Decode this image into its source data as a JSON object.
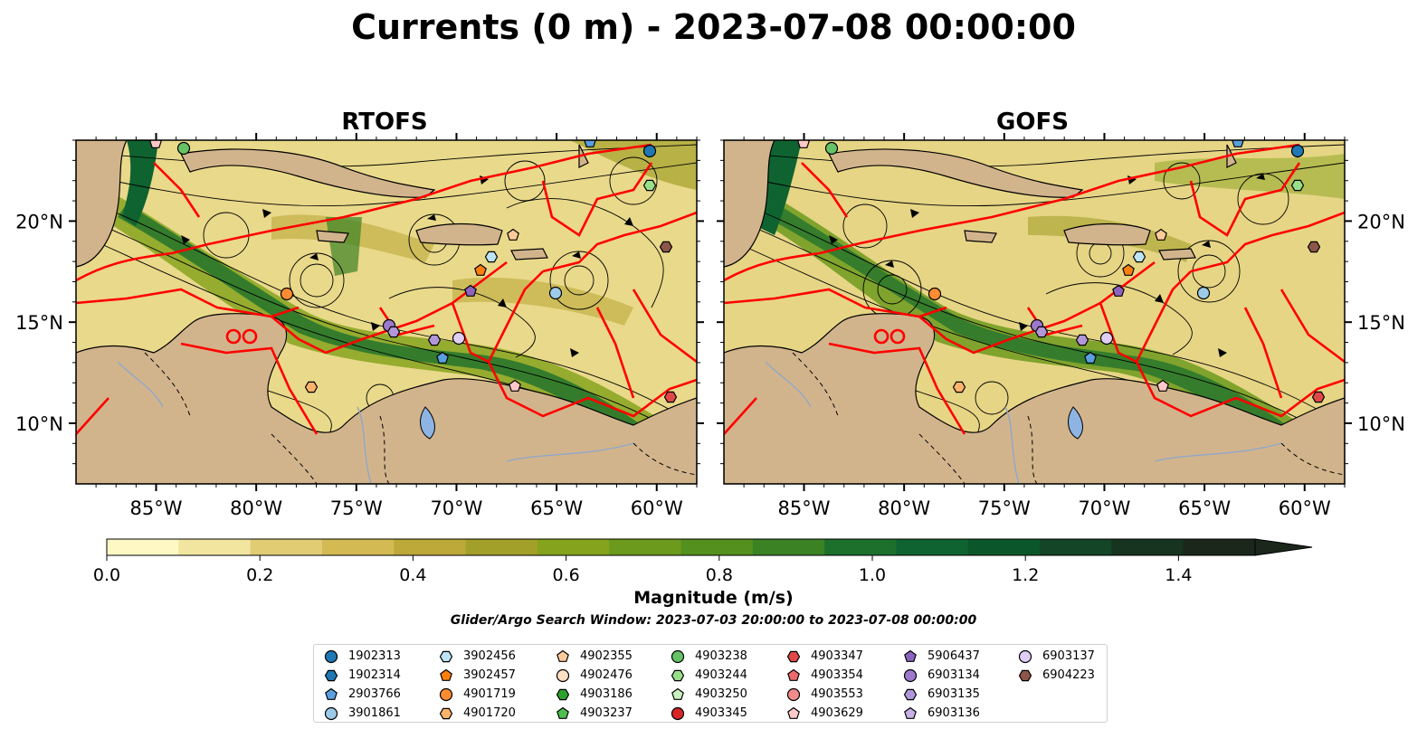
{
  "title": "Currents (0 m) - 2023-07-08 00:00:00",
  "panels": [
    {
      "title": "RTOFS",
      "lon_ticks": [
        "85°W",
        "80°W",
        "75°W",
        "70°W",
        "65°W",
        "60°W"
      ],
      "lat_ticks": [
        "20°N",
        "15°N",
        "10°N"
      ]
    },
    {
      "title": "GOFS",
      "lon_ticks": [
        "85°W",
        "80°W",
        "75°W",
        "70°W",
        "65°W",
        "60°W"
      ],
      "lat_ticks": [
        "20°N",
        "15°N",
        "10°N"
      ]
    }
  ],
  "map_extent": {
    "lon": [
      -89,
      -58
    ],
    "lat": [
      7,
      24
    ]
  },
  "colorbar": {
    "label": "Magnitude (m/s)",
    "ticks": [
      "0.0",
      "0.2",
      "0.4",
      "0.6",
      "0.8",
      "1.0",
      "1.2",
      "1.4"
    ],
    "range": [
      0,
      1.5
    ],
    "extend": "max",
    "colors": [
      "#fdf8c4",
      "#f1e5a0",
      "#e1cc74",
      "#d4ba52",
      "#bca93a",
      "#a3a02a",
      "#86a31e",
      "#6c9a1c",
      "#54901e",
      "#3a8224",
      "#1c702c",
      "#0f6330",
      "#0b562b",
      "#134526",
      "#173421",
      "#1a271a"
    ]
  },
  "search_window": "Glider/Argo Search Window: 2023-07-03 20:00:00 to 2023-07-08 00:00:00",
  "land_color": "#d2b48c",
  "eez_color": "#ff0000",
  "legend": [
    {
      "id": "1902313",
      "marker": "circle",
      "color": "#1f77b4"
    },
    {
      "id": "1902314",
      "marker": "hexagon",
      "color": "#1f77b4"
    },
    {
      "id": "2903766",
      "marker": "pentagon",
      "color": "#5aa0e0"
    },
    {
      "id": "3901861",
      "marker": "circle",
      "color": "#9ecae9"
    },
    {
      "id": "3902456",
      "marker": "hexagon",
      "color": "#bde3f7"
    },
    {
      "id": "3902457",
      "marker": "pentagon",
      "color": "#ff7f0e"
    },
    {
      "id": "4901719",
      "marker": "circle",
      "color": "#ff8c33"
    },
    {
      "id": "4901720",
      "marker": "hexagon",
      "color": "#ffb36b"
    },
    {
      "id": "4902355",
      "marker": "pentagon",
      "color": "#ffcc99"
    },
    {
      "id": "4902476",
      "marker": "circle",
      "color": "#ffe0c0"
    },
    {
      "id": "4903186",
      "marker": "hexagon",
      "color": "#2ca02c"
    },
    {
      "id": "4903237",
      "marker": "pentagon",
      "color": "#4dbf4d"
    },
    {
      "id": "4903238",
      "marker": "circle",
      "color": "#66c266"
    },
    {
      "id": "4903244",
      "marker": "hexagon",
      "color": "#98df8a"
    },
    {
      "id": "4903250",
      "marker": "pentagon",
      "color": "#c8f0c0"
    },
    {
      "id": "4903345",
      "marker": "circle",
      "color": "#d62728"
    },
    {
      "id": "4903347",
      "marker": "hexagon",
      "color": "#e04848"
    },
    {
      "id": "4903354",
      "marker": "pentagon",
      "color": "#ec6a6a"
    },
    {
      "id": "4903553",
      "marker": "circle",
      "color": "#f28c8c"
    },
    {
      "id": "4903629",
      "marker": "pentagon",
      "color": "#ffc8c8"
    },
    {
      "id": "5906437",
      "marker": "pentagon",
      "color": "#8c64bf"
    },
    {
      "id": "6903134",
      "marker": "circle",
      "color": "#9d79cc"
    },
    {
      "id": "6903135",
      "marker": "hexagon",
      "color": "#b196d9"
    },
    {
      "id": "6903136",
      "marker": "pentagon",
      "color": "#c9b0e8"
    },
    {
      "id": "6903137",
      "marker": "circle",
      "color": "#e0cff5"
    },
    {
      "id": "6904223",
      "marker": "hexagon",
      "color": "#8c564b"
    }
  ]
}
